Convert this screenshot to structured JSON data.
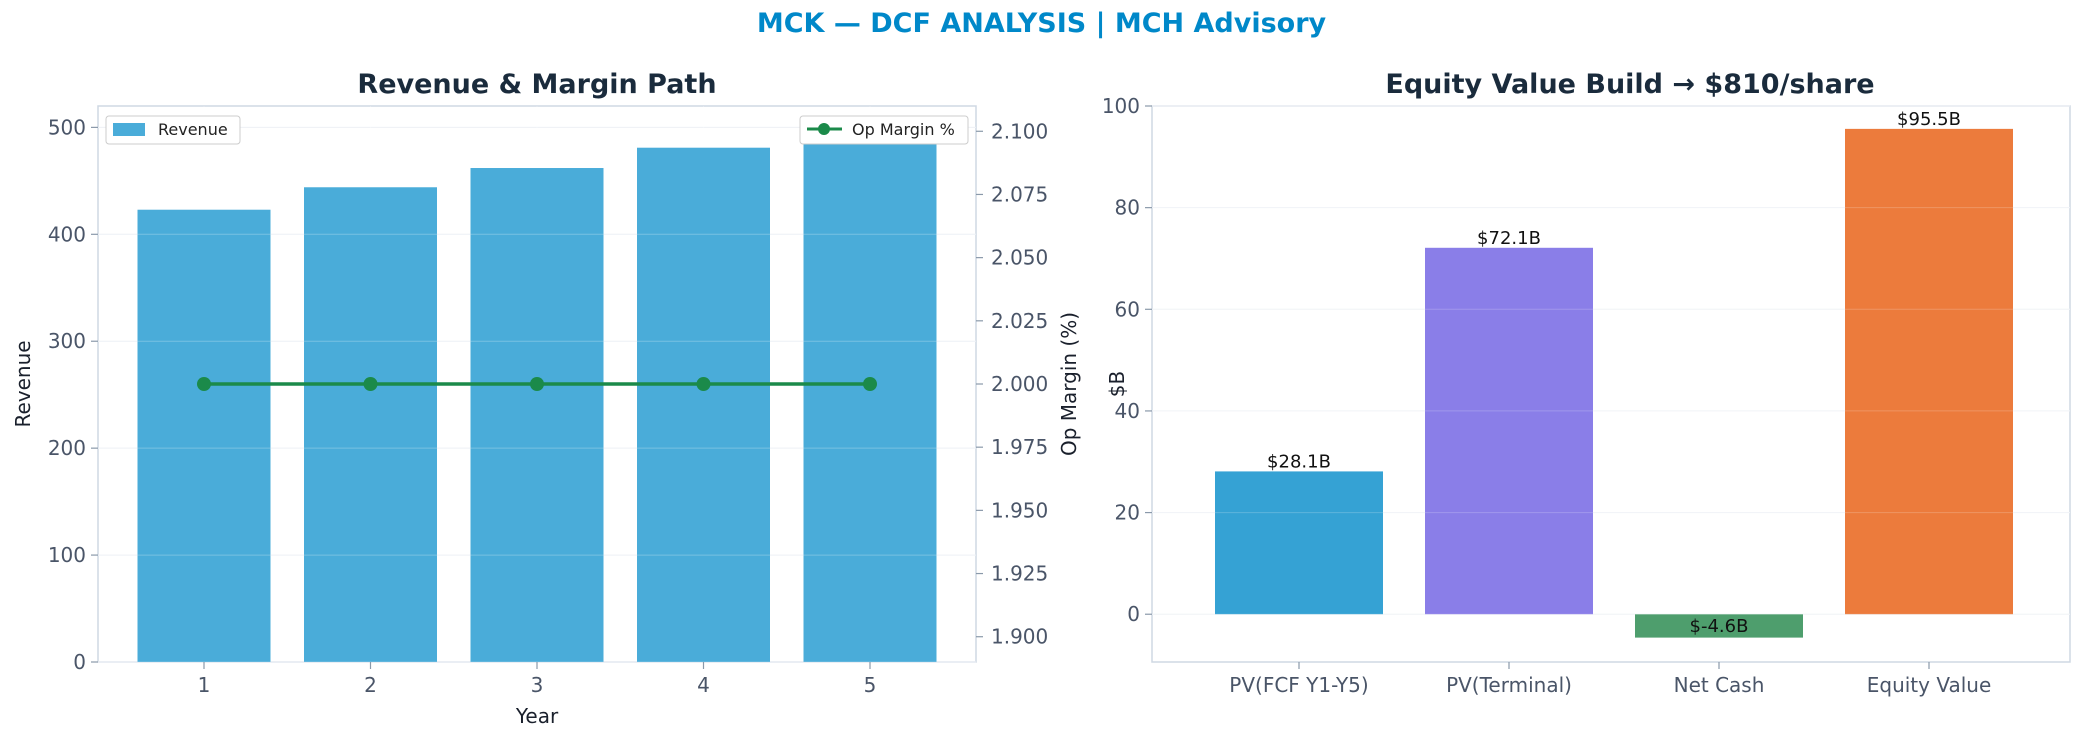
{
  "suptitle": "MCK — DCF ANALYSIS | MCH Advisory",
  "colors": {
    "accent": "#0088c9",
    "revenue_bar": "#4aacd9",
    "margin_line": "#1b8a4a",
    "bars": [
      "#35a2d4",
      "#8a7ee8",
      "#4e9e6d",
      "#ec7b3c"
    ]
  },
  "chart_data": [
    {
      "type": "bar",
      "title": "Revenue & Margin Path",
      "xlabel": "Year",
      "ylabel": "Revenue",
      "y2label": "Op Margin (%)",
      "categories": [
        "1",
        "2",
        "3",
        "4",
        "5"
      ],
      "series": [
        {
          "name": "Revenue",
          "type": "bar",
          "axis": "left",
          "values": [
            423,
            444,
            462,
            481,
            500
          ]
        },
        {
          "name": "Op Margin %",
          "type": "line",
          "axis": "right",
          "values": [
            2.0,
            2.0,
            2.0,
            2.0,
            2.0
          ]
        }
      ],
      "ylim": [
        0,
        520
      ],
      "yticks": [
        "0",
        "100",
        "200",
        "300",
        "400",
        "500"
      ],
      "y2lim": [
        1.89,
        2.11
      ],
      "y2ticks": [
        "1.900",
        "1.925",
        "1.950",
        "1.975",
        "2.000",
        "2.025",
        "2.050",
        "2.075",
        "2.100"
      ],
      "grid": true,
      "legend": [
        "upper-left",
        "upper-right"
      ]
    },
    {
      "type": "bar",
      "title": "Equity Value Build → $810/share",
      "ylabel": "$B",
      "categories": [
        "PV(FCF Y1-Y5)",
        "PV(Terminal)",
        "Net Cash",
        "Equity Value"
      ],
      "values": [
        28.1,
        72.1,
        -4.6,
        95.5
      ],
      "data_labels": [
        "$28.1B",
        "$72.1B",
        "$-4.6B",
        "$95.5B"
      ],
      "ylim": [
        -9.4,
        100
      ],
      "yticks": [
        "0",
        "20",
        "40",
        "60",
        "80",
        "100"
      ],
      "grid": true
    }
  ]
}
